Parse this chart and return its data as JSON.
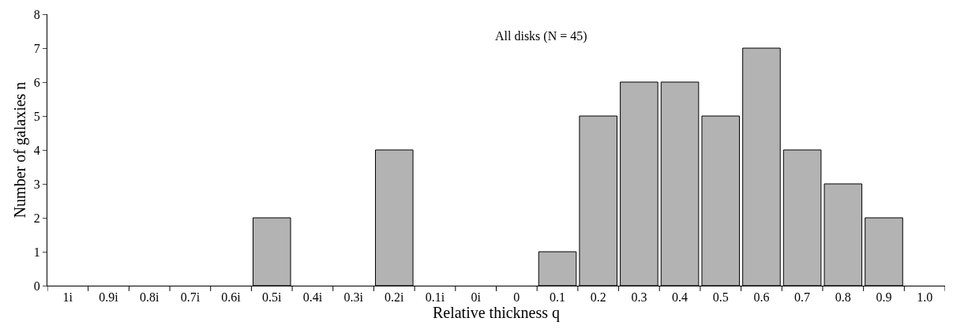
{
  "chart_data": {
    "type": "bar",
    "xlabel": "Relative thickness q",
    "ylabel": "Number of galaxies n",
    "annotations": [
      "All disks (N = 45)"
    ],
    "categories": [
      "1i",
      "0.9i",
      "0.8i",
      "0.7i",
      "0.6i",
      "0.5i",
      "0.4i",
      "0.3i",
      "0.2i",
      "0.1i",
      "0i",
      "0",
      "0.1",
      "0.2",
      "0.3",
      "0.4",
      "0.5",
      "0.6",
      "0.7",
      "0.8",
      "0.9",
      "1.0"
    ],
    "values": [
      0,
      0,
      0,
      0,
      0,
      2,
      0,
      0,
      4,
      0,
      0,
      0,
      1,
      5,
      6,
      6,
      5,
      7,
      4,
      3,
      2,
      0
    ],
    "color": "#b3b3b3",
    "ylim": [
      0,
      8
    ],
    "yticks": [
      0,
      1,
      2,
      3,
      4,
      5,
      6,
      7,
      8
    ]
  }
}
